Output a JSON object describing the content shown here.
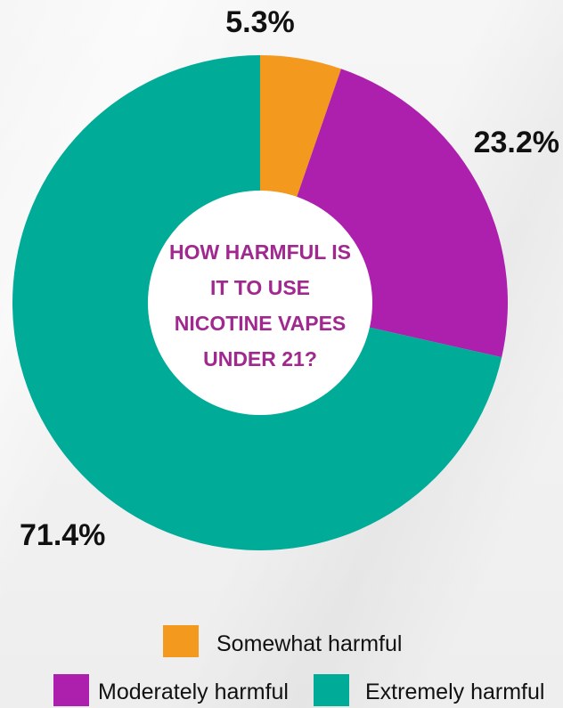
{
  "chart_data": {
    "type": "pie",
    "donut": true,
    "title_lines": [
      "HOW HARMFUL IS",
      "IT TO USE",
      "NICOTINE VAPES",
      "UNDER 21?"
    ],
    "categories": [
      "Somewhat harmful",
      "Moderately harmful",
      "Extremely harmful"
    ],
    "values": [
      5.3,
      23.2,
      71.4
    ],
    "value_labels": [
      "5.3%",
      "23.2%",
      "71.4%"
    ],
    "colors": [
      "#f39a1e",
      "#ad1fad",
      "#00ab97"
    ],
    "legend_position": "bottom"
  },
  "style": {
    "title_color": "#a0288e"
  }
}
